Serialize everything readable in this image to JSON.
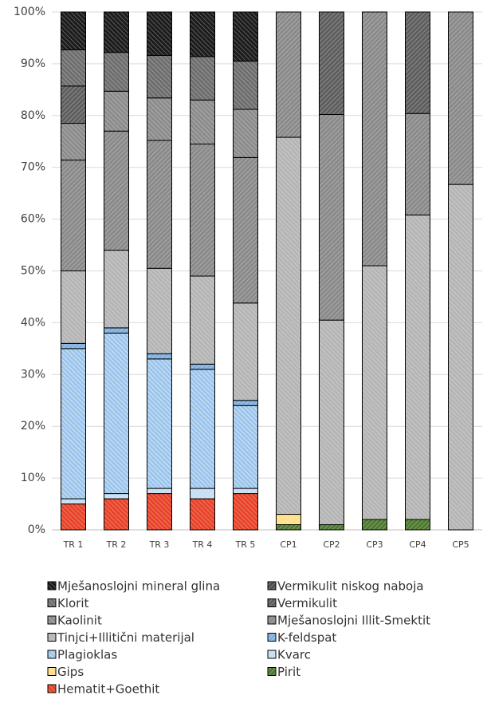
{
  "chart_data": {
    "type": "stacked_bar",
    "categories": [
      "TR 1",
      "TR 2",
      "TR 3",
      "TR 4",
      "TR 5",
      "CP1",
      "CP2",
      "CP3",
      "CP4",
      "CP5"
    ],
    "ylim": [
      0,
      100
    ],
    "yticks": [
      {
        "value": 0,
        "label": "0%"
      },
      {
        "value": 10,
        "label": "10%"
      },
      {
        "value": 20,
        "label": "20%"
      },
      {
        "value": 30,
        "label": "30%"
      },
      {
        "value": 40,
        "label": "40%"
      },
      {
        "value": 50,
        "label": "50%"
      },
      {
        "value": 60,
        "label": "60%"
      },
      {
        "value": 70,
        "label": "70%"
      },
      {
        "value": 80,
        "label": "80%"
      },
      {
        "value": 90,
        "label": "90%"
      },
      {
        "value": 100,
        "label": "100%"
      }
    ],
    "grid": true,
    "series": [
      {
        "name": "Mješanoslojni mineral glina",
        "color": "#1c1c1c",
        "values": [
          7.3,
          7.8,
          8.4,
          8.6,
          9.5,
          0,
          0,
          0,
          0,
          0
        ]
      },
      {
        "name": "Vermikulit niskog naboja",
        "color": "#4d4d4d",
        "values": [
          0,
          0,
          0,
          0,
          0,
          0,
          0,
          0,
          0,
          0
        ]
      },
      {
        "name": "Klorit",
        "color": "#6e6e6e",
        "values": [
          7,
          7.5,
          8.2,
          8.4,
          9.3,
          0,
          0,
          0,
          0,
          0
        ]
      },
      {
        "name": "Vermikulit",
        "color": "#5e5e5e",
        "values": [
          7.2,
          0,
          0,
          0,
          0,
          0,
          19.8,
          0,
          19.6,
          0
        ]
      },
      {
        "name": "Kaolinit",
        "color": "#8c8c8c",
        "values": [
          7.1,
          7.7,
          8.2,
          8.5,
          9.3,
          0,
          0,
          0,
          0,
          0
        ]
      },
      {
        "name": "Mješanoslojni Illit-Smektit",
        "color": "#8a8a8a",
        "values": [
          21.4,
          23,
          24.7,
          25.5,
          28.1,
          24.2,
          39.7,
          49,
          19.6,
          33.3
        ]
      },
      {
        "name": "Tinjci+Illitični materijal",
        "color": "#b5b5b5",
        "values": [
          14,
          15,
          16.5,
          17,
          18.8,
          72.8,
          39.5,
          49,
          58.8,
          66.7
        ]
      },
      {
        "name": "K-feldspat",
        "color": "#7fb0df",
        "values": [
          1,
          1,
          1,
          1,
          1,
          0,
          0,
          0,
          0,
          0
        ]
      },
      {
        "name": "Plagioklas",
        "color": "#9cc5ec",
        "values": [
          29,
          31,
          25,
          23,
          16,
          0,
          0,
          0,
          0,
          0
        ]
      },
      {
        "name": "Kvarc",
        "color": "#c6def4",
        "values": [
          1,
          1,
          1,
          2,
          1,
          0,
          0,
          0,
          0,
          0
        ]
      },
      {
        "name": "Gips",
        "color": "#ffe08a",
        "values": [
          0,
          0,
          0,
          0,
          0,
          2,
          0,
          0,
          0,
          0
        ]
      },
      {
        "name": "Pirit",
        "color": "#4e7a2e",
        "values": [
          0,
          0,
          0,
          0,
          0,
          1,
          1,
          2,
          2,
          0
        ]
      },
      {
        "name": "Hematit+Goethit",
        "color": "#e8442a",
        "values": [
          5,
          6,
          7,
          6,
          7,
          0,
          0,
          0,
          0,
          0
        ]
      }
    ]
  }
}
